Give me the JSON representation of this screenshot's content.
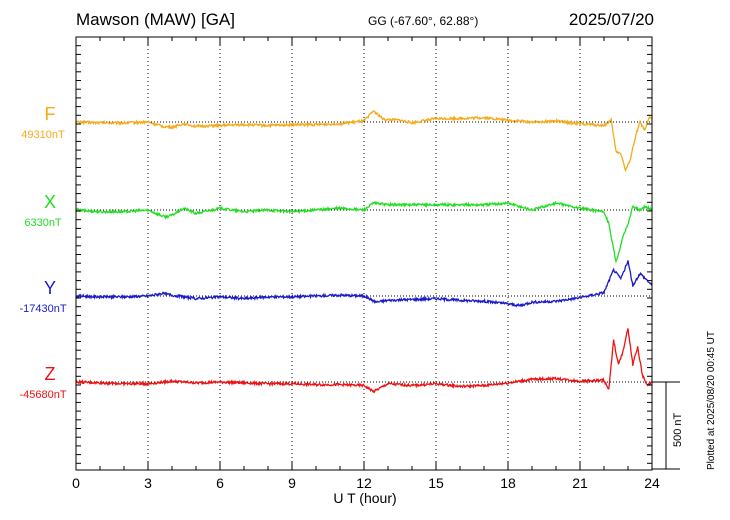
{
  "header": {
    "station": "Mawson (MAW)  [GA]",
    "coords": "GG (-67.60°,  62.88°)",
    "date": "2025/07/20"
  },
  "footer": {
    "plotted": "Plotted at 2025/08/20 00:45 UT",
    "scale_label": "500 nT"
  },
  "chart_data": {
    "type": "line",
    "title": "",
    "xlabel": "U T (hour)",
    "ylabel": "",
    "xlim": [
      0,
      24
    ],
    "x_ticks": [
      "0",
      "3",
      "6",
      "9",
      "12",
      "15",
      "18",
      "21",
      "24"
    ],
    "scale_bar_nT": 500,
    "grid": true,
    "series": [
      {
        "name": "F",
        "baseline": "49310nT",
        "color": "#f5aa1c",
        "x": [
          0,
          1,
          2,
          3,
          3.6,
          4,
          4.5,
          5,
          6,
          7,
          8,
          9,
          10,
          11,
          12,
          12.4,
          12.8,
          13.5,
          14,
          15,
          16,
          17,
          18,
          19,
          20,
          21,
          22,
          22.3,
          22.5,
          22.7,
          22.9,
          23.1,
          23.3,
          23.5,
          23.7,
          23.9,
          24
        ],
        "y": [
          0,
          -5,
          -5,
          0,
          -25,
          -30,
          -10,
          -25,
          -20,
          -15,
          -20,
          -15,
          -15,
          -10,
          5,
          65,
          15,
          10,
          -5,
          20,
          20,
          25,
          10,
          0,
          5,
          -10,
          -20,
          10,
          -170,
          -180,
          -280,
          -210,
          -90,
          0,
          -50,
          30,
          20
        ]
      },
      {
        "name": "X",
        "baseline": "6330nT",
        "color": "#22dd22",
        "x": [
          0,
          1,
          2,
          3,
          3.7,
          4,
          4.5,
          5,
          6,
          7,
          8,
          9,
          10,
          11,
          12,
          12.4,
          13,
          14,
          15,
          16,
          17,
          18,
          19,
          20,
          21,
          22,
          22.2,
          22.5,
          22.8,
          23,
          23.2,
          23.5,
          23.7,
          24
        ],
        "y": [
          0,
          -10,
          -10,
          0,
          -40,
          -30,
          10,
          -20,
          10,
          -10,
          0,
          -10,
          0,
          10,
          0,
          40,
          30,
          30,
          30,
          30,
          30,
          40,
          0,
          40,
          10,
          -10,
          -80,
          -300,
          -150,
          -80,
          20,
          0,
          20,
          0
        ]
      },
      {
        "name": "Y",
        "baseline": "-17430nT",
        "color": "#1a1acc",
        "x": [
          0,
          1,
          2,
          3,
          3.6,
          4,
          5,
          6,
          7,
          8,
          9,
          10,
          11,
          12,
          12.5,
          13,
          14,
          15,
          16,
          17,
          18,
          18.5,
          19,
          20,
          21,
          22,
          22.4,
          22.7,
          23,
          23.2,
          23.5,
          23.8,
          24
        ],
        "y": [
          0,
          -5,
          -5,
          0,
          15,
          5,
          -15,
          -5,
          -15,
          -5,
          -5,
          0,
          5,
          0,
          -35,
          -25,
          -20,
          -15,
          -25,
          -30,
          -45,
          -55,
          -35,
          -30,
          -10,
          20,
          150,
          100,
          200,
          60,
          130,
          90,
          60
        ]
      },
      {
        "name": "Z",
        "baseline": "-45680nT",
        "color": "#ee1111",
        "x": [
          0,
          1,
          2,
          3,
          4,
          5,
          6,
          7,
          8,
          9,
          10,
          11,
          12,
          12.4,
          13,
          14,
          15,
          16,
          17,
          18,
          19,
          20,
          21,
          22,
          22.2,
          22.4,
          22.6,
          22.8,
          23,
          23.2,
          23.4,
          23.6,
          23.8,
          24
        ],
        "y": [
          0,
          -5,
          -10,
          -10,
          5,
          -5,
          0,
          -5,
          -10,
          -10,
          -15,
          -15,
          -20,
          -55,
          -10,
          -20,
          -10,
          -25,
          -20,
          -5,
          15,
          20,
          5,
          10,
          -45,
          240,
          100,
          180,
          310,
          100,
          200,
          40,
          -20,
          0
        ]
      }
    ]
  }
}
